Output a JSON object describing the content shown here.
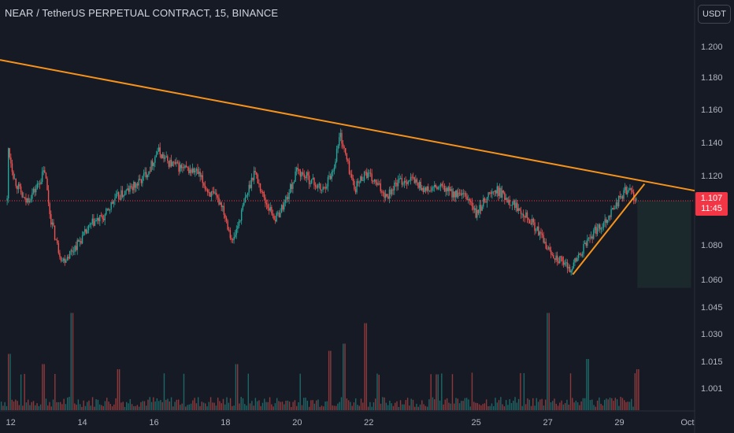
{
  "header": {
    "title": "NEAR / TetherUS PERPETUAL CONTRACT, 15, BINANCE"
  },
  "price_scale": {
    "unit_button": "USDT"
  },
  "last_price": {
    "value": "1.107",
    "countdown": "11:45",
    "color": "#f23645"
  },
  "colors": {
    "background": "#161a25",
    "up": "#26a69a",
    "down": "#ef5350",
    "trendline": "#f7931a",
    "axis_text": "#b2b5be"
  },
  "chart_data": {
    "type": "candlestick",
    "symbol": "NEAR / TetherUS PERPETUAL CONTRACT",
    "interval": "15",
    "exchange": "BINANCE",
    "x_tick_labels": [
      "12",
      "14",
      "16",
      "18",
      "20",
      "22",
      "25",
      "27",
      "29",
      "Oct"
    ],
    "y_tick_labels": [
      "1.200",
      "1.180",
      "1.160",
      "1.140",
      "1.120",
      "1.080",
      "1.060",
      "1.045",
      "1.030",
      "1.015",
      "1.001"
    ],
    "price_ylim": [
      1.05,
      1.21
    ],
    "price_path": [
      [
        11.9,
        1.142
      ],
      [
        12.1,
        1.12
      ],
      [
        12.4,
        1.106
      ],
      [
        12.7,
        1.114
      ],
      [
        12.95,
        1.125
      ],
      [
        13.1,
        1.098
      ],
      [
        13.3,
        1.08
      ],
      [
        13.45,
        1.071
      ],
      [
        13.7,
        1.077
      ],
      [
        14.0,
        1.085
      ],
      [
        14.3,
        1.094
      ],
      [
        14.6,
        1.097
      ],
      [
        14.9,
        1.108
      ],
      [
        15.2,
        1.112
      ],
      [
        15.6,
        1.118
      ],
      [
        15.9,
        1.127
      ],
      [
        16.1,
        1.137
      ],
      [
        16.4,
        1.13
      ],
      [
        16.8,
        1.126
      ],
      [
        17.2,
        1.124
      ],
      [
        17.5,
        1.113
      ],
      [
        17.9,
        1.105
      ],
      [
        18.2,
        1.082
      ],
      [
        18.5,
        1.104
      ],
      [
        18.8,
        1.125
      ],
      [
        19.1,
        1.107
      ],
      [
        19.4,
        1.096
      ],
      [
        19.7,
        1.108
      ],
      [
        20.0,
        1.125
      ],
      [
        20.4,
        1.119
      ],
      [
        20.7,
        1.113
      ],
      [
        21.0,
        1.125
      ],
      [
        21.2,
        1.147
      ],
      [
        21.4,
        1.13
      ],
      [
        21.6,
        1.114
      ],
      [
        21.9,
        1.124
      ],
      [
        22.2,
        1.117
      ],
      [
        22.5,
        1.11
      ],
      [
        22.8,
        1.118
      ],
      [
        23.2,
        1.12
      ],
      [
        23.6,
        1.113
      ],
      [
        24.0,
        1.115
      ],
      [
        24.4,
        1.111
      ],
      [
        24.8,
        1.108
      ],
      [
        25.0,
        1.098
      ],
      [
        25.3,
        1.11
      ],
      [
        25.6,
        1.113
      ],
      [
        26.0,
        1.106
      ],
      [
        26.4,
        1.099
      ],
      [
        26.8,
        1.086
      ],
      [
        27.0,
        1.078
      ],
      [
        27.3,
        1.072
      ],
      [
        27.6,
        1.066
      ],
      [
        27.9,
        1.075
      ],
      [
        28.2,
        1.086
      ],
      [
        28.6,
        1.095
      ],
      [
        29.0,
        1.108
      ],
      [
        29.2,
        1.114
      ],
      [
        29.4,
        1.11
      ],
      [
        29.5,
        1.107
      ]
    ],
    "volume_ylim": [
      0,
      1
    ],
    "volume_spikes": [
      [
        11.95,
        0.55
      ],
      [
        12.9,
        0.45
      ],
      [
        13.7,
        0.95
      ],
      [
        15.0,
        0.4
      ],
      [
        18.3,
        0.45
      ],
      [
        20.9,
        0.58
      ],
      [
        21.3,
        0.65
      ],
      [
        21.9,
        0.85
      ],
      [
        23.9,
        0.35
      ],
      [
        27.0,
        0.95
      ],
      [
        28.1,
        0.5
      ],
      [
        29.5,
        0.4
      ]
    ],
    "trendlines": [
      {
        "from": [
          11.7,
          1.191
        ],
        "to": [
          31.1,
          1.113
        ]
      },
      {
        "from": [
          27.7,
          1.063
        ],
        "to": [
          29.7,
          1.117
        ]
      }
    ],
    "last_price_line": 1.107,
    "shaded_zone": {
      "x": [
        29.5,
        31.0
      ],
      "y": [
        1.055,
        1.107
      ]
    }
  }
}
